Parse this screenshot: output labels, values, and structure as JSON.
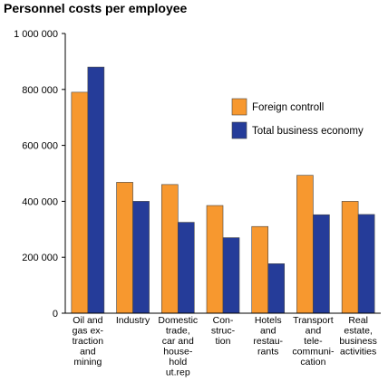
{
  "chart_data": {
    "type": "bar",
    "title": "Personnel costs per employee",
    "xlabel": "",
    "ylabel": "",
    "ylim": [
      0,
      1000000
    ],
    "yticks": [
      0,
      200000,
      400000,
      600000,
      800000,
      1000000
    ],
    "ytick_labels": [
      "0",
      "200 000",
      "400 000",
      "600 000",
      "800 000",
      "1 000 000"
    ],
    "grid": false,
    "legend_position": "top-right",
    "categories": [
      [
        "Oil and",
        "gas ex-",
        "traction",
        "and",
        "mining"
      ],
      [
        "Industry"
      ],
      [
        "Domestic",
        "trade,",
        "car and",
        "house-",
        "hold",
        "ut.rep"
      ],
      [
        "Con-",
        "struc-",
        "tion"
      ],
      [
        "Hotels",
        "and",
        "restau-",
        "rants"
      ],
      [
        "Transport",
        "and",
        "tele-",
        "communi-",
        "cation"
      ],
      [
        "Real",
        "estate,",
        "business",
        "activities"
      ]
    ],
    "series": [
      {
        "name": "Foreign controll",
        "color": "#f7982f",
        "values": [
          790000,
          468000,
          460000,
          385000,
          310000,
          493000,
          400000
        ]
      },
      {
        "name": "Total business economy",
        "color": "#253c99",
        "values": [
          880000,
          400000,
          325000,
          270000,
          177000,
          352000,
          353000
        ]
      }
    ]
  }
}
